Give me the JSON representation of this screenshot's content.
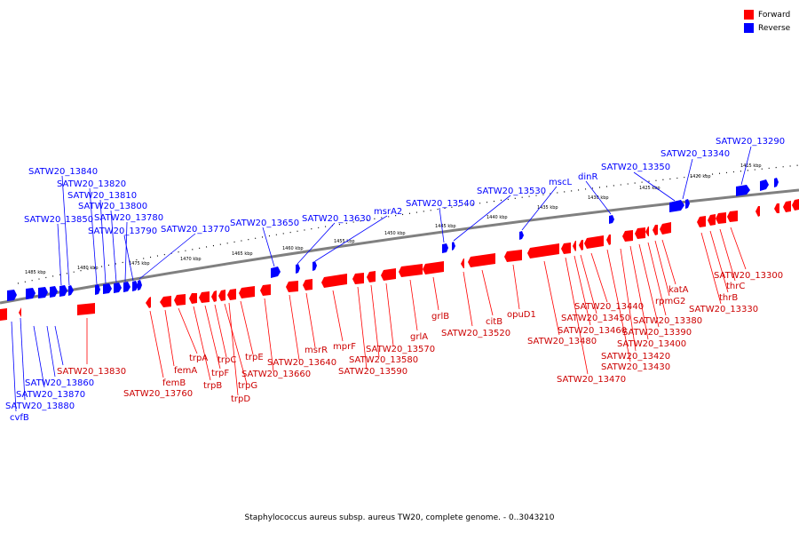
{
  "legend": {
    "forward_label": "Forward",
    "reverse_label": "Reverse",
    "forward_color": "#ff0000",
    "reverse_color": "#0000ff"
  },
  "caption": "Staphylococcus aureus subsp. aureus TW20, complete genome. - 0..3043210",
  "colors": {
    "forward": "#ff0000",
    "reverse": "#0000ff",
    "backbone": "#808080",
    "leader": "#000000"
  },
  "scale_labels": [
    "1485 kbp",
    "1480 kbp",
    "1475 kbp",
    "1470 kbp",
    "1465 kbp",
    "1460 kbp",
    "1455 kbp",
    "1450 kbp",
    "1445 kbp",
    "1440 kbp",
    "1435 kbp",
    "1430 kbp",
    "1425 kbp",
    "1420 kbp",
    "1415 kbp"
  ],
  "reverse_labels": [
    "SATW20_13290",
    "SATW20_13340",
    "SATW20_13350",
    "dinR",
    "mscL",
    "SATW20_13530",
    "SATW20_13540",
    "msrA2",
    "SATW20_13630",
    "SATW20_13650",
    "SATW20_13770",
    "SATW20_13790",
    "SATW20_13780",
    "SATW20_13800",
    "SATW20_13810",
    "SATW20_13820",
    "SATW20_13840",
    "SATW20_13850"
  ],
  "forward_upper_labels": [
    "SATW20_13860",
    "SATW20_13870",
    "SATW20_13880",
    "cvfB"
  ],
  "forward_labels": [
    "SATW20_13830",
    "femB",
    "SATW20_13760",
    "femA",
    "trpA",
    "trpB",
    "trpF",
    "trpC",
    "trpG",
    "trpD",
    "trpE",
    "SATW20_13660",
    "SATW20_13640",
    "msrR",
    "mprF",
    "SATW20_13590",
    "SATW20_13580",
    "SATW20_13570",
    "grlA",
    "grlB",
    "SATW20_13520",
    "citB",
    "opuD1",
    "SATW20_13480",
    "SATW20_13470",
    "SATW20_13460",
    "SATW20_13450",
    "SATW20_13440",
    "SATW20_13430",
    "SATW20_13420",
    "SATW20_13400",
    "SATW20_13390",
    "SATW20_13380",
    "rpmG2",
    "katA",
    "SATW20_13330",
    "thrB",
    "thrC",
    "SATW20_13300"
  ]
}
